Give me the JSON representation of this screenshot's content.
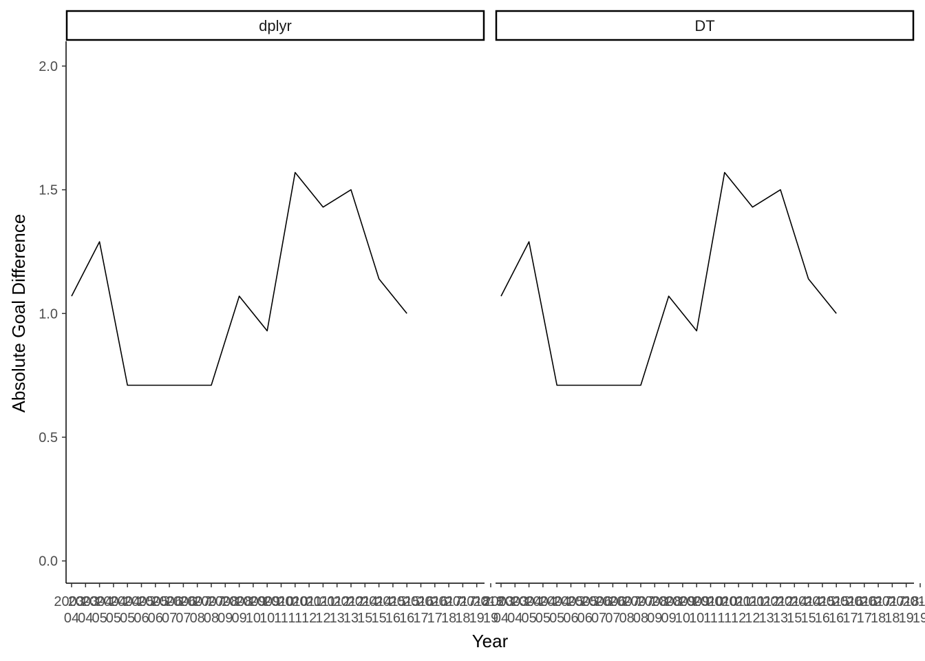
{
  "chart_data": [
    {
      "type": "line",
      "panel": "dplyr",
      "x": [
        "2003-04",
        "2004-05",
        "2005-06",
        "2006-07",
        "2007-08",
        "2008-09",
        "2009-10",
        "2010-11",
        "2011-12",
        "2012-13",
        "2013-14",
        "2014-15",
        "2015-16",
        "2016-17",
        "2017-18",
        "2018-19"
      ],
      "series": [
        {
          "values": [
            1.07,
            1.29,
            0.71,
            0.71,
            0.71,
            0.71,
            1.07,
            0.93,
            1.57,
            1.43,
            1.5,
            1.14,
            1.0,
            null,
            null,
            null
          ]
        }
      ],
      "xlabel": "Year",
      "ylabel": "Absolute Goal Difference",
      "ylim": [
        -0.09,
        2.1
      ],
      "yticks": [
        "0.0",
        "0.5",
        "1.0",
        "1.5",
        "2.0"
      ],
      "grid": false
    },
    {
      "type": "line",
      "panel": "DT",
      "x": [
        "2003-04",
        "2004-05",
        "2005-06",
        "2006-07",
        "2007-08",
        "2008-09",
        "2009-10",
        "2010-11",
        "2011-12",
        "2012-13",
        "2013-14",
        "2014-15",
        "2015-16",
        "2016-17",
        "2017-18",
        "2018-19"
      ],
      "series": [
        {
          "values": [
            1.07,
            1.29,
            0.71,
            0.71,
            0.71,
            0.71,
            1.07,
            0.93,
            1.57,
            1.43,
            1.5,
            1.14,
            1.0,
            null,
            null,
            null
          ]
        }
      ],
      "xlabel": "Year",
      "ylabel": "Absolute Goal Difference",
      "ylim": [
        -0.09,
        2.1
      ],
      "yticks": [
        "0.0",
        "0.5",
        "1.0",
        "1.5",
        "2.0"
      ],
      "grid": false
    }
  ],
  "x_tick_labels": [
    [
      "2003",
      "04"
    ],
    [
      "2003",
      "04"
    ],
    [
      "2004",
      "05"
    ],
    [
      "2004",
      "05"
    ],
    [
      "2004",
      "05"
    ],
    [
      "2005",
      "06"
    ],
    [
      "2005",
      "06"
    ],
    [
      "2006",
      "07"
    ],
    [
      "2006",
      "07"
    ],
    [
      "2007",
      "08"
    ],
    [
      "2007",
      "08"
    ],
    [
      "2008",
      "09"
    ],
    [
      "2008",
      "09"
    ],
    [
      "2009",
      "10"
    ],
    [
      "2009",
      "10"
    ],
    [
      "2010",
      "11"
    ],
    [
      "2010",
      "11"
    ],
    [
      "2011",
      "12"
    ],
    [
      "2011",
      "12"
    ],
    [
      "2012",
      "13"
    ],
    [
      "2012",
      "13"
    ],
    [
      "2014",
      "15"
    ],
    [
      "2014",
      "15"
    ],
    [
      "2015",
      "16"
    ],
    [
      "2015",
      "16"
    ],
    [
      "2016",
      "17"
    ],
    [
      "2016",
      "17"
    ],
    [
      "2017",
      "18"
    ],
    [
      "2017",
      "18"
    ],
    [
      "2018",
      "19"
    ],
    [
      "2018",
      "19"
    ]
  ],
  "xlabel": "Year",
  "ylabel": "Absolute Goal Difference",
  "panels": [
    "dplyr",
    "DT"
  ]
}
